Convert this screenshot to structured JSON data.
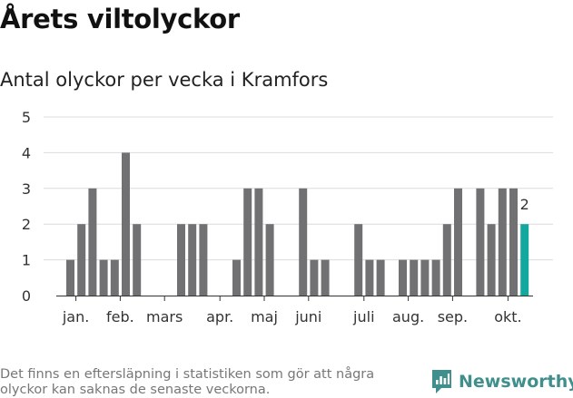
{
  "header": {
    "title": "Årets viltolyckor",
    "subtitle": "Antal olyckor per vecka i Kramfors"
  },
  "footer": {
    "note": "Det finns en eftersläpning i statistiken som gör att några olyckor kan saknas de senaste veckorna.",
    "brand": "Newsworthy"
  },
  "colors": {
    "bar": "#717073",
    "highlight": "#14a79d",
    "grid": "#dcdcdc",
    "axis": "#333333",
    "brand": "#3f8f8c"
  },
  "chart_data": {
    "type": "bar",
    "title": "Årets viltolyckor",
    "subtitle": "Antal olyckor per vecka i Kramfors",
    "xlabel": "",
    "ylabel": "",
    "ylim": [
      0,
      5
    ],
    "yticks": [
      0,
      1,
      2,
      3,
      4,
      5
    ],
    "grid": true,
    "weeks": [
      1,
      2,
      3,
      4,
      5,
      6,
      7,
      8,
      9,
      10,
      11,
      12,
      13,
      14,
      15,
      16,
      17,
      18,
      19,
      20,
      21,
      22,
      23,
      24,
      25,
      26,
      27,
      28,
      29,
      30,
      31,
      32,
      33,
      34,
      35,
      36,
      37,
      38,
      39,
      40,
      41,
      42
    ],
    "values": [
      1,
      2,
      3,
      1,
      1,
      4,
      2,
      0,
      0,
      0,
      2,
      2,
      2,
      0,
      0,
      1,
      3,
      3,
      2,
      0,
      0,
      3,
      1,
      1,
      0,
      0,
      2,
      1,
      1,
      0,
      1,
      1,
      1,
      1,
      2,
      3,
      0,
      3,
      2,
      3,
      3,
      2
    ],
    "highlight_week": 42,
    "highlight_label": "2",
    "month_labels": [
      {
        "label": "jan.",
        "week": 1.5
      },
      {
        "label": "feb.",
        "week": 5.5
      },
      {
        "label": "mars",
        "week": 9.5
      },
      {
        "label": "apr.",
        "week": 14.5
      },
      {
        "label": "maj",
        "week": 18.5
      },
      {
        "label": "juni",
        "week": 22.5
      },
      {
        "label": "juli",
        "week": 27.5
      },
      {
        "label": "aug.",
        "week": 31.5
      },
      {
        "label": "sep.",
        "week": 35.5
      },
      {
        "label": "okt.",
        "week": 40.5
      }
    ]
  }
}
